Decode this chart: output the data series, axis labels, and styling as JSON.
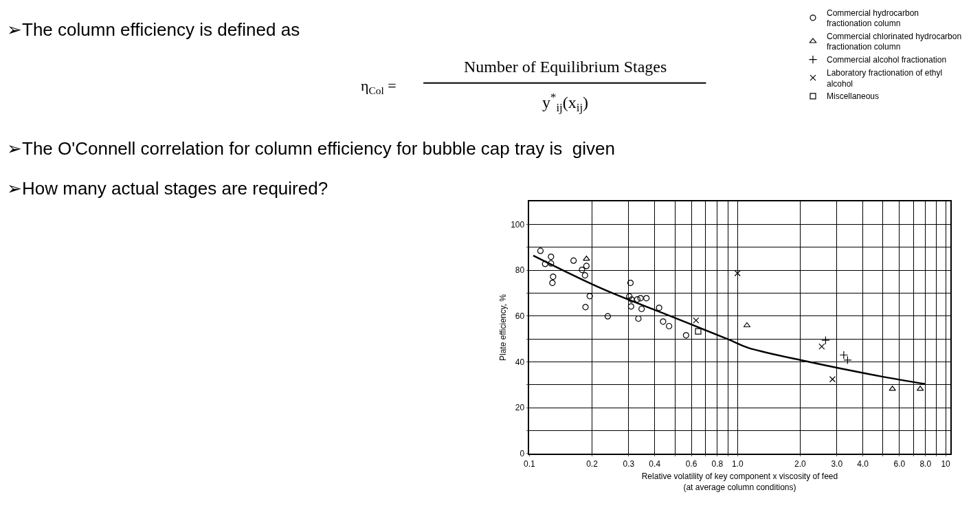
{
  "chart_data": {
    "type": "scatter",
    "xlabel": "Relative volatility of key component x viscosity of feed\n(at average column conditions)",
    "ylabel": "Plate efficiency, %",
    "annotations": [
      "➢The column efficiency is defined as",
      "η$_{Col}$ =",
      "Number of Equilibrium Stages",
      "y$^{*}$$_{ij}$(x$_{ij}$)",
      "➢The O'Connell correlation for column efficiency for bubble cap tray is  given",
      "➢How many actual stages are required?"
    ],
    "log": "x",
    "grid": true,
    "legend": "top right",
    "xlim": [
      0.1,
      10.5
    ],
    "xticks": [
      0.1,
      0.2,
      0.3,
      0.4,
      {
        "value": 0.5,
        "label": null
      },
      0.6,
      {
        "value": 0.7,
        "label": null
      },
      0.8,
      {
        "value": 0.9,
        "label": null
      },
      {
        "value": 1,
        "label": "1.0"
      },
      {
        "value": 2,
        "label": "2.0"
      },
      {
        "value": 3,
        "label": "3.0"
      },
      {
        "value": 4,
        "label": "4.0"
      },
      {
        "value": 5,
        "label": null
      },
      {
        "value": 6,
        "label": "6.0"
      },
      {
        "value": 7,
        "label": null
      },
      {
        "value": 8,
        "label": "8.0"
      },
      {
        "value": 9,
        "label": null
      },
      10
    ],
    "ylim": [
      0,
      110
    ],
    "yticks": [
      0,
      {
        "value": 10,
        "label": null
      },
      20,
      {
        "value": 30,
        "label": null
      },
      40,
      {
        "value": 50,
        "label": null
      },
      60,
      {
        "value": 70,
        "label": null
      },
      80,
      {
        "value": 90,
        "label": null
      },
      100
    ],
    "series": [
      {
        "name": "Commercial hydrocarbon fractionation column",
        "color": "#000000",
        "marker": "circle",
        "x": [
          0.113,
          0.119,
          0.127,
          0.127,
          0.13,
          0.129,
          0.163,
          0.179,
          0.188,
          0.185,
          0.195,
          0.186,
          0.238,
          0.306,
          0.302,
          0.31,
          0.308,
          0.33,
          0.342,
          0.365,
          0.346,
          0.334,
          0.42,
          0.439,
          0.469,
          0.566
        ],
        "values": [
          88.5,
          82.8,
          85.9,
          83.0,
          77.2,
          74.5,
          84.2,
          80.2,
          81.9,
          77.8,
          68.7,
          63.9,
          59.9,
          74.5,
          68.6,
          67.2,
          64.2,
          67.3,
          67.8,
          67.8,
          63.1,
          58.9,
          63.6,
          57.6,
          55.6,
          51.6
        ]
      },
      {
        "name": "Commercial chlorinated hydrocarbon fractionation column",
        "color": "#000000",
        "marker": "triangle",
        "x": [
          0.188,
          1.11,
          5.55,
          7.55
        ],
        "values": [
          85.0,
          55.9,
          28.2,
          28.2
        ]
      },
      {
        "name": "Commercial alcohol fractionation",
        "color": "#000000",
        "marker": "cross",
        "x": [
          2.65,
          3.24,
          3.38
        ],
        "values": [
          49.4,
          43.0,
          40.8
        ]
      },
      {
        "name": "Laboratory fractionation of ethyl alcohol",
        "color": "#000000",
        "marker": "x",
        "x": [
          0.632,
          1.0,
          2.54,
          2.86
        ],
        "values": [
          58.1,
          78.7,
          46.7,
          32.4
        ]
      },
      {
        "name": "Miscellaneous",
        "color": "#000000",
        "marker": "square",
        "x": [
          0.647
        ],
        "values": [
          53.3
        ]
      },
      {
        "type": "line",
        "color": "#000000",
        "marker": "none",
        "line_style": "solid",
        "x": [
          0.1044,
          0.224,
          0.476,
          0.91,
          1.122,
          2.15,
          4.8,
          8.0
        ],
        "values": [
          86.4,
          71.9,
          60.0,
          49.7,
          46.2,
          40.2,
          33.8,
          30.3
        ]
      }
    ]
  }
}
